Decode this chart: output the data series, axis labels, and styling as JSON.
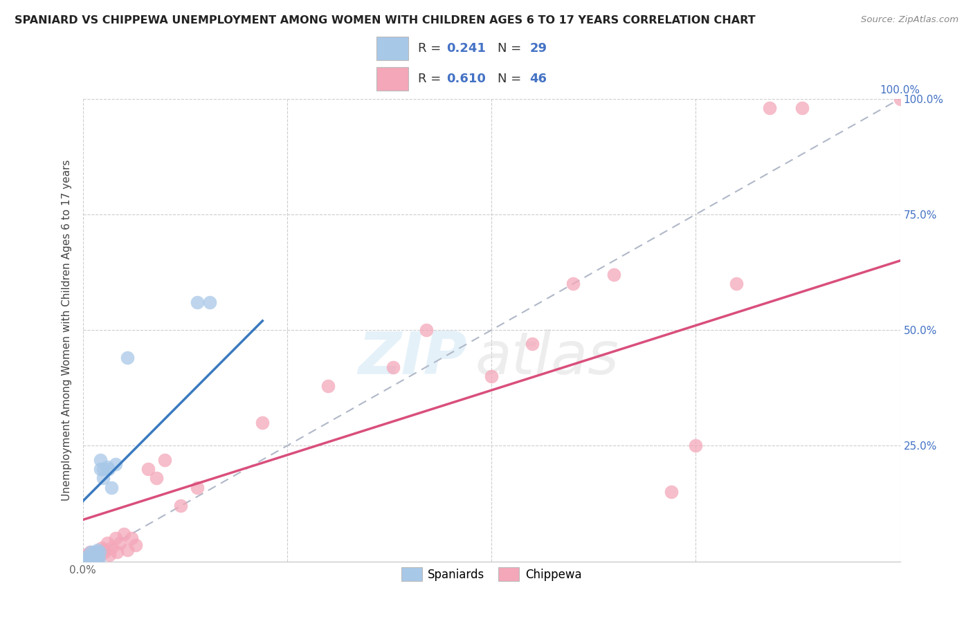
{
  "title": "SPANIARD VS CHIPPEWA UNEMPLOYMENT AMONG WOMEN WITH CHILDREN AGES 6 TO 17 YEARS CORRELATION CHART",
  "source": "Source: ZipAtlas.com",
  "ylabel": "Unemployment Among Women with Children Ages 6 to 17 years",
  "xlim": [
    0,
    1
  ],
  "ylim": [
    0,
    1
  ],
  "xticks": [
    0.0,
    0.25,
    0.5,
    0.75,
    1.0
  ],
  "yticks": [
    0.0,
    0.25,
    0.5,
    0.75,
    1.0
  ],
  "xticklabels_left": [
    "0.0%",
    "",
    "",
    "",
    ""
  ],
  "xticklabel_right": "100.0%",
  "watermark_zip": "ZIP",
  "watermark_atlas": "atlas",
  "blue_color": "#a8c8e8",
  "pink_color": "#f4a7b9",
  "blue_line_color": "#3a7abf",
  "pink_line_color": "#d94f7c",
  "diagonal_color": "#b0b8c8",
  "spaniards_x": [
    0.005,
    0.005,
    0.007,
    0.008,
    0.009,
    0.01,
    0.01,
    0.01,
    0.012,
    0.013,
    0.015,
    0.015,
    0.016,
    0.017,
    0.018,
    0.018,
    0.02,
    0.021,
    0.022,
    0.022,
    0.025,
    0.025,
    0.03,
    0.032,
    0.035,
    0.04,
    0.055,
    0.14,
    0.155
  ],
  "spaniards_y": [
    0.005,
    0.01,
    0.005,
    0.005,
    0.01,
    0.005,
    0.015,
    0.02,
    0.005,
    0.02,
    0.005,
    0.015,
    0.02,
    0.005,
    0.015,
    0.025,
    0.005,
    0.02,
    0.2,
    0.22,
    0.18,
    0.2,
    0.205,
    0.2,
    0.16,
    0.21,
    0.44,
    0.56,
    0.56
  ],
  "chippewa_x": [
    0.003,
    0.005,
    0.006,
    0.008,
    0.009,
    0.01,
    0.012,
    0.013,
    0.015,
    0.016,
    0.018,
    0.019,
    0.02,
    0.022,
    0.023,
    0.025,
    0.027,
    0.03,
    0.033,
    0.035,
    0.04,
    0.042,
    0.045,
    0.05,
    0.055,
    0.06,
    0.065,
    0.08,
    0.09,
    0.1,
    0.12,
    0.14,
    0.22,
    0.3,
    0.38,
    0.42,
    0.5,
    0.55,
    0.6,
    0.65,
    0.72,
    0.75,
    0.8,
    0.84,
    0.88,
    1.0
  ],
  "chippewa_y": [
    0.005,
    0.015,
    0.005,
    0.005,
    0.02,
    0.015,
    0.01,
    0.005,
    0.01,
    0.02,
    0.005,
    0.01,
    0.015,
    0.02,
    0.03,
    0.025,
    0.02,
    0.04,
    0.015,
    0.03,
    0.05,
    0.02,
    0.04,
    0.06,
    0.025,
    0.05,
    0.035,
    0.2,
    0.18,
    0.22,
    0.12,
    0.16,
    0.3,
    0.38,
    0.42,
    0.5,
    0.4,
    0.47,
    0.6,
    0.62,
    0.15,
    0.25,
    0.6,
    0.98,
    0.98,
    1.0
  ],
  "blue_line_x": [
    0.0,
    0.22
  ],
  "blue_line_y": [
    0.13,
    0.52
  ],
  "pink_line_x": [
    0.0,
    1.0
  ],
  "pink_line_y": [
    0.09,
    0.65
  ]
}
